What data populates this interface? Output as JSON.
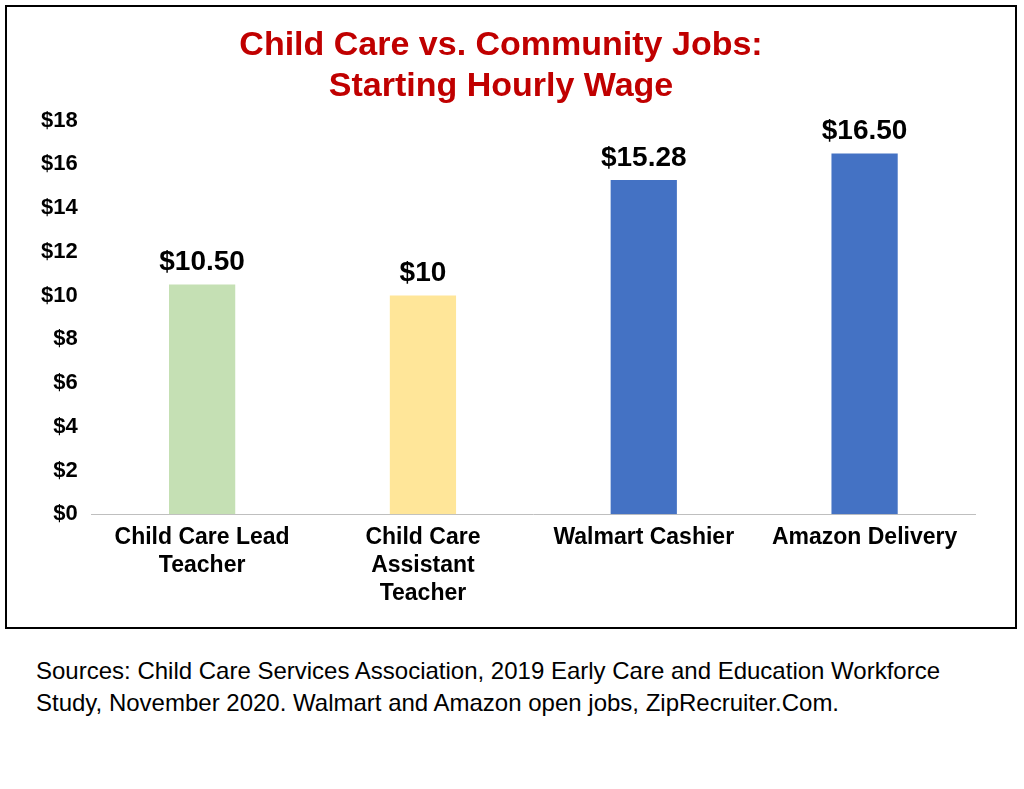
{
  "chart_data": {
    "type": "bar",
    "title": [
      "Child Care vs. Community Jobs:",
      "Starting Hourly Wage"
    ],
    "caption": "Sources: Child Care Services Association, 2019 Early Care and Education Workforce Study, November 2020. Walmart and Amazon open jobs, ZipRecruiter.Com.",
    "categories": [
      "Child Care Lead Teacher",
      "Child Care Assistant Teacher",
      "Walmart Cashier",
      "Amazon Delivery"
    ],
    "values": [
      10.5,
      10,
      15.28,
      16.5
    ],
    "value_labels": [
      "$10.50",
      "$10",
      "$15.28",
      "$16.50"
    ],
    "colors": [
      "#c5e0b4",
      "#ffe699",
      "#4472c4",
      "#4472c4"
    ],
    "ylim": [
      0,
      18
    ],
    "yticks": [
      {
        "value": 0,
        "label": "$0"
      },
      {
        "value": 2,
        "label": "$2"
      },
      {
        "value": 4,
        "label": "$4"
      },
      {
        "value": 6,
        "label": "$6"
      },
      {
        "value": 8,
        "label": "$8"
      },
      {
        "value": 10,
        "label": "$10"
      },
      {
        "value": 12,
        "label": "$12"
      },
      {
        "value": 14,
        "label": "$14"
      },
      {
        "value": 16,
        "label": "$16"
      },
      {
        "value": 18,
        "label": "$18"
      }
    ],
    "grid": false,
    "data_labels": true
  }
}
